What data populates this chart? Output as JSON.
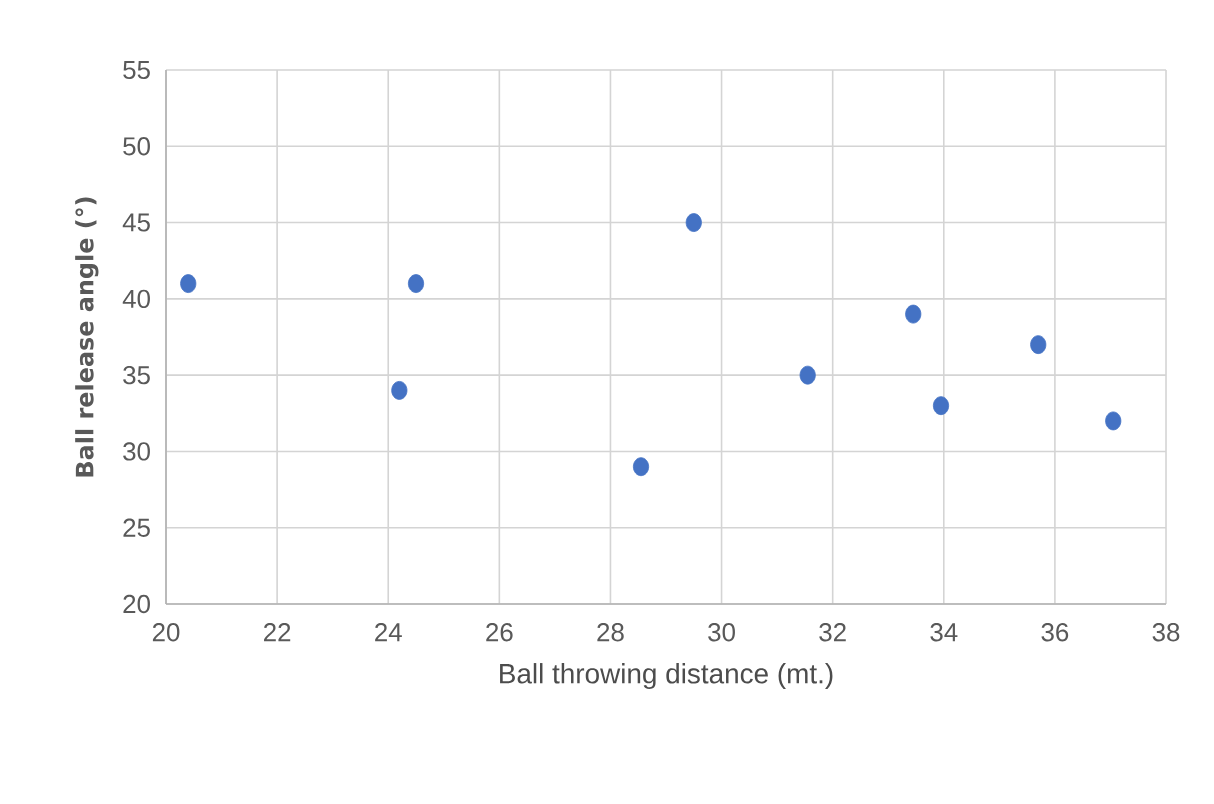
{
  "chart_data": {
    "type": "scatter",
    "xlabel": "Ball throwing distance (mt.)",
    "ylabel": "Ball release angle (°)",
    "x": [
      20.4,
      24.2,
      24.5,
      28.55,
      29.5,
      31.55,
      33.45,
      33.95,
      35.7,
      37.05
    ],
    "series": [
      {
        "color": "#4472c4",
        "values": [
          41,
          34,
          41,
          29,
          45,
          35,
          39,
          33,
          37,
          32
        ]
      }
    ],
    "xlim": [
      20,
      38
    ],
    "xticks": [
      20,
      22,
      24,
      26,
      28,
      30,
      32,
      34,
      36,
      38
    ],
    "ylim": [
      20,
      55
    ],
    "yticks": [
      20,
      25,
      30,
      35,
      40,
      45,
      50,
      55
    ],
    "grid": true
  }
}
